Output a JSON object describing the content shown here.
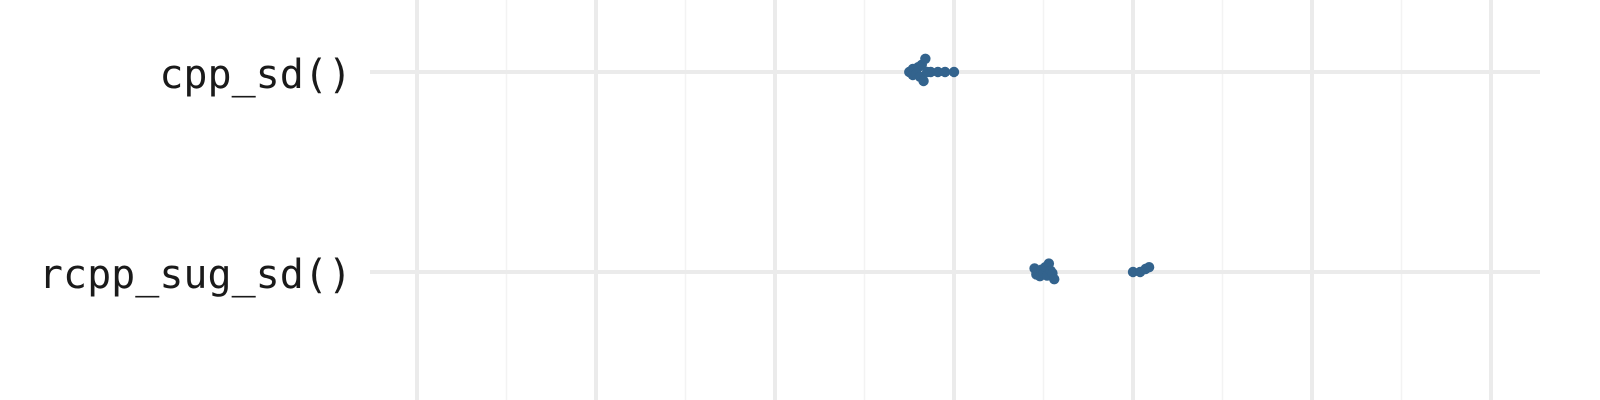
{
  "chart_data": {
    "type": "scatter",
    "title": "",
    "xlabel": "",
    "ylabel": "",
    "grid": true,
    "legend": "none",
    "colors": {
      "point": "#33638d",
      "grid_major": "#ebebeb",
      "grid_minor": "#f3f3f3",
      "background": "#ffffff"
    },
    "xlim": [
      -0.05,
      6.5
    ],
    "major_ticks": [
      0,
      1,
      2,
      3,
      4,
      5,
      6
    ],
    "minor_ticks": [
      0.5,
      1.5,
      2.5,
      3.5,
      4.5,
      5.5
    ],
    "categories": [
      "cpp_sd()",
      "rcpp_sug_sd()"
    ],
    "series": [
      {
        "category": "cpp_sd()",
        "points": [
          {
            "x": 2.75,
            "y": 0.0
          },
          {
            "x": 2.77,
            "y": 0.05
          },
          {
            "x": 2.77,
            "y": -0.05
          },
          {
            "x": 2.78,
            "y": 0.02
          },
          {
            "x": 2.79,
            "y": -0.03
          },
          {
            "x": 2.8,
            "y": 0.08
          },
          {
            "x": 2.81,
            "y": -0.08
          },
          {
            "x": 2.82,
            "y": 0.12
          },
          {
            "x": 2.83,
            "y": -0.15
          },
          {
            "x": 2.84,
            "y": 0.22
          },
          {
            "x": 2.85,
            "y": 0.0
          },
          {
            "x": 2.87,
            "y": 0.0
          },
          {
            "x": 2.91,
            "y": 0.0
          },
          {
            "x": 2.95,
            "y": 0.0
          },
          {
            "x": 3.0,
            "y": 0.0
          }
        ]
      },
      {
        "category": "rcpp_sug_sd()",
        "points": [
          {
            "x": 3.45,
            "y": 0.06
          },
          {
            "x": 3.46,
            "y": -0.04
          },
          {
            "x": 3.47,
            "y": 0.02
          },
          {
            "x": 3.48,
            "y": -0.07
          },
          {
            "x": 3.49,
            "y": 0.04
          },
          {
            "x": 3.5,
            "y": -0.02
          },
          {
            "x": 3.51,
            "y": 0.08
          },
          {
            "x": 3.52,
            "y": -0.06
          },
          {
            "x": 3.53,
            "y": 0.14
          },
          {
            "x": 3.54,
            "y": 0.02
          },
          {
            "x": 3.55,
            "y": -0.02
          },
          {
            "x": 3.56,
            "y": -0.12
          },
          {
            "x": 4.0,
            "y": 0.0
          },
          {
            "x": 4.04,
            "y": 0.0
          },
          {
            "x": 4.07,
            "y": 0.05
          },
          {
            "x": 4.09,
            "y": 0.08
          }
        ]
      }
    ]
  }
}
